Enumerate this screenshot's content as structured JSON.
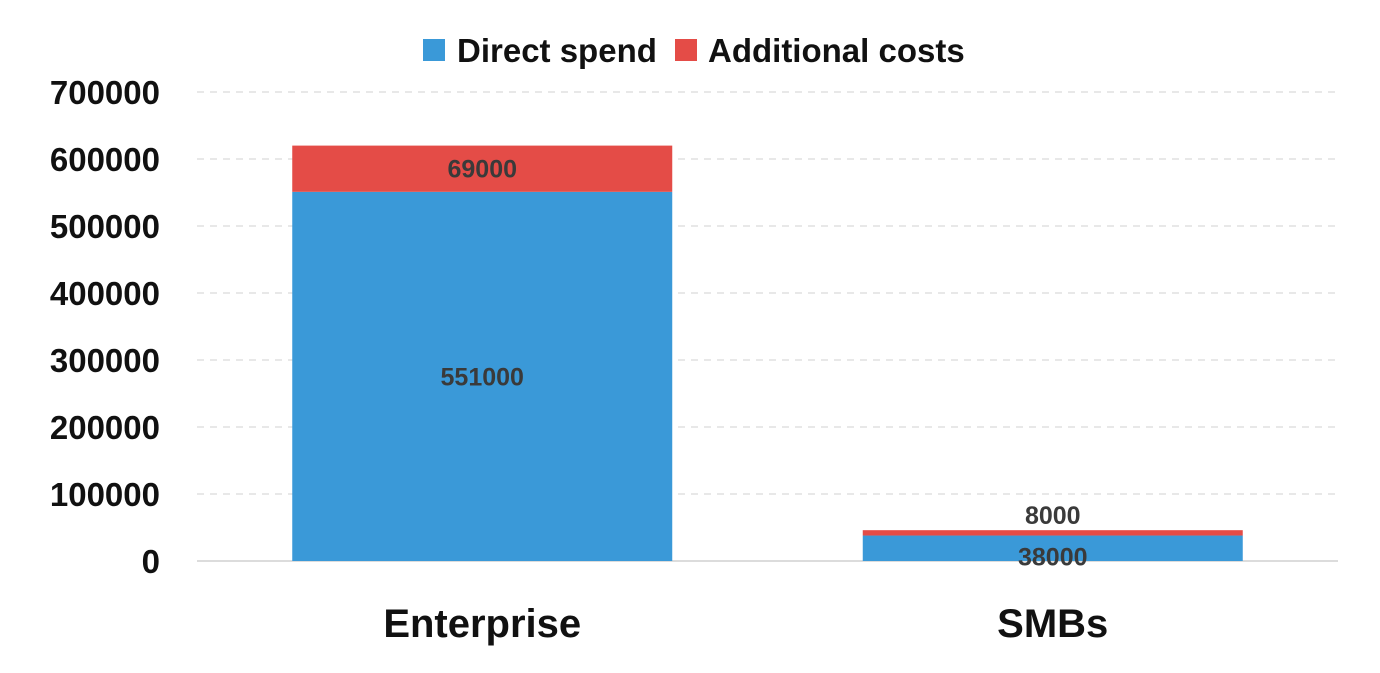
{
  "chart_data": {
    "type": "bar",
    "stacked": true,
    "categories": [
      "Enterprise",
      "SMBs"
    ],
    "series": [
      {
        "name": "Direct spend",
        "values": [
          551000,
          38000
        ],
        "color": "#3a99d8"
      },
      {
        "name": "Additional costs",
        "values": [
          69000,
          8000
        ],
        "color": "#e44c47"
      }
    ],
    "yticks": [
      "0",
      "100000",
      "200000",
      "300000",
      "400000",
      "500000",
      "600000",
      "700000"
    ],
    "ylim": [
      0,
      700000
    ],
    "grid": true,
    "legend_position": "top-center"
  }
}
